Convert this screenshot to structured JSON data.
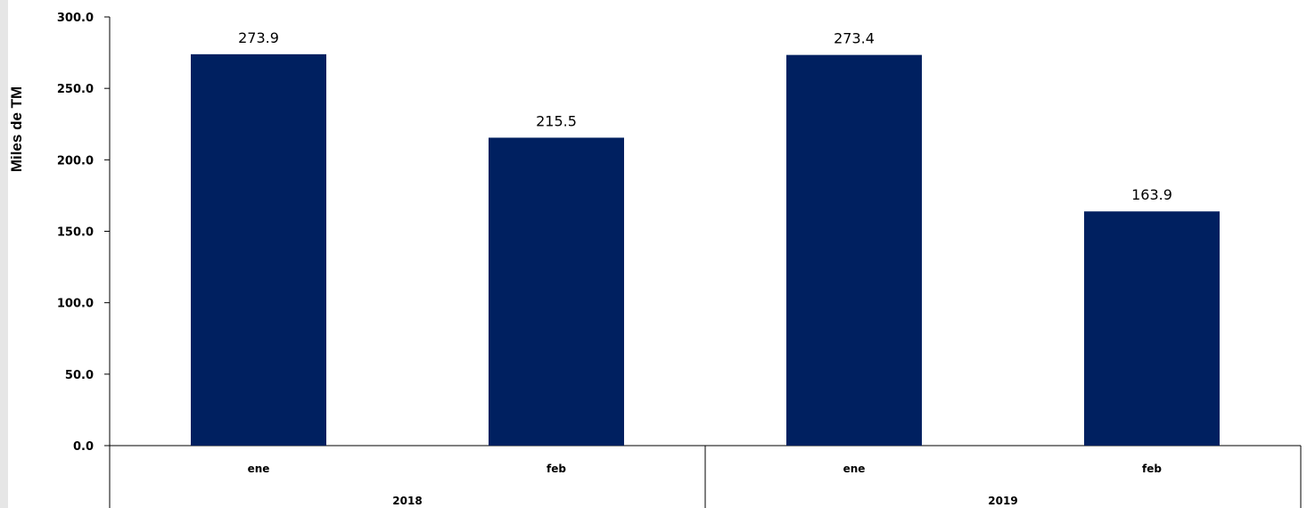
{
  "chart_data": {
    "type": "bar",
    "ylabel": "Miles de TM",
    "ylim": [
      0,
      300
    ],
    "yticks": [
      "0.0",
      "50.0",
      "100.0",
      "150.0",
      "200.0",
      "250.0",
      "300.0"
    ],
    "grid": false,
    "categories": [
      "ene",
      "feb",
      "ene",
      "feb"
    ],
    "groups": [
      {
        "label": "2018",
        "categories": [
          "ene",
          "feb"
        ]
      },
      {
        "label": "2019",
        "categories": [
          "ene",
          "feb"
        ]
      }
    ],
    "values": [
      273.9,
      215.5,
      273.4,
      163.9
    ],
    "data_labels": [
      "273.9",
      "215.5",
      "273.4",
      "163.9"
    ],
    "bar_color": "#002060"
  }
}
